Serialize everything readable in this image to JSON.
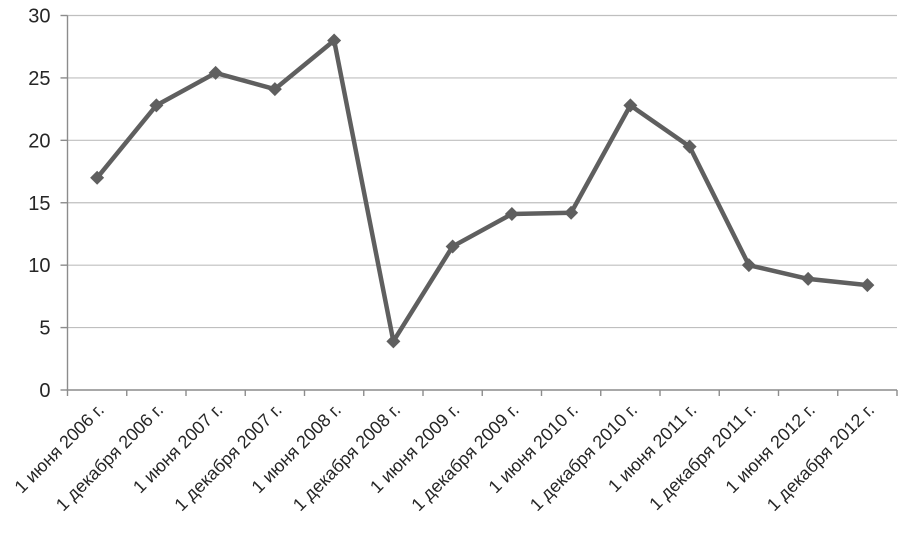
{
  "chart_data": {
    "type": "line",
    "title": "",
    "xlabel": "",
    "ylabel": "",
    "categories": [
      "1 июня 2006 г.",
      "1 декабря 2006 г.",
      "1 июня 2007 г.",
      "1 декабря 2007 г.",
      "1 июня 2008 г.",
      "1 декабря 2008 г.",
      "1 июня 2009 г.",
      "1 декабря 2009 г.",
      "1 июня 2010 г.",
      "1 декабря 2010 г.",
      "1 июня 2011 г.",
      "1 декабря 2011 г.",
      "1 июня 2012 г.",
      "1 декабря 2012 г."
    ],
    "values": [
      17.0,
      22.8,
      25.4,
      24.1,
      28.0,
      3.9,
      11.5,
      14.1,
      14.2,
      22.8,
      19.5,
      10.0,
      8.9,
      8.4
    ],
    "ylim": [
      0,
      30
    ],
    "y_ticks": [
      0,
      5,
      10,
      15,
      20,
      25,
      30
    ],
    "grid": "horizontal",
    "legend": "none",
    "marker": "diamond",
    "colors": {
      "line": "#5f5f5f",
      "marker": "#5f5f5f",
      "gridline": "#bfbfbf",
      "axis": "#8c8c8c",
      "tick_label": "#262626",
      "background": "#ffffff"
    }
  }
}
